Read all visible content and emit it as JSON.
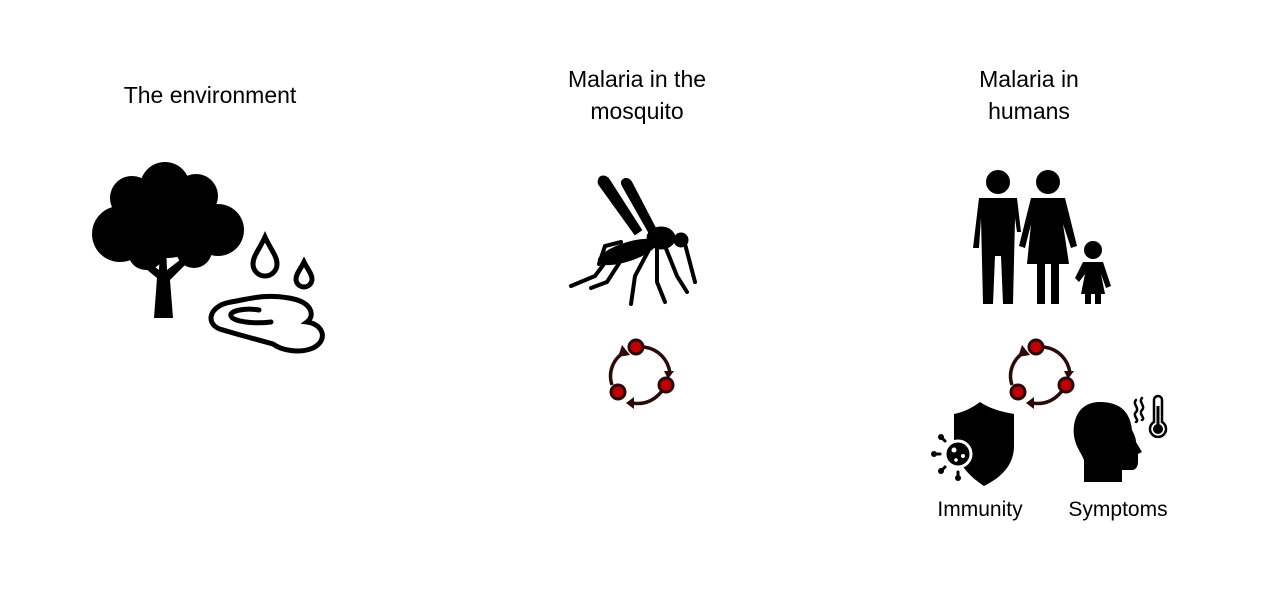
{
  "sections": {
    "environment": {
      "title": "The environment"
    },
    "mosquito": {
      "title": "Malaria in the\nmosquito"
    },
    "humans": {
      "title": "Malaria in\nhumans",
      "immunity_label": "Immunity",
      "symptoms_label": "Symptoms"
    }
  },
  "icons": [
    "tree-icon",
    "water-drops-icon",
    "puddle-icon",
    "mosquito-icon",
    "lifecycle-icon",
    "family-icon",
    "shield-virus-icon",
    "head-fever-icon",
    "thermometer-icon"
  ],
  "colors": {
    "cycle_dot": "#c00000",
    "cycle_arrow": "#2a0a0a",
    "icon": "#000000"
  }
}
